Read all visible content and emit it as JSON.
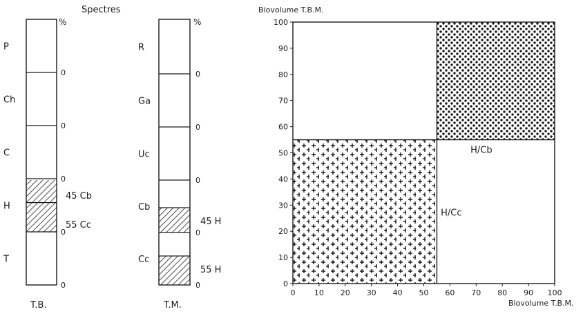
{
  "chart_data": [
    {
      "type": "bar",
      "title": "Spectres",
      "xlabel": "T.B.",
      "unit_label": "%",
      "categories": [
        "P",
        "Ch",
        "C",
        "H",
        "T"
      ],
      "axis_ticks": [
        "0",
        "0",
        "0",
        "0",
        "0"
      ],
      "hatched_range": {
        "from": "H",
        "to": "H"
      },
      "annotations": [
        "45 Cb",
        "55 Cc"
      ],
      "pattern": "diagonal-hatch"
    },
    {
      "type": "bar",
      "xlabel": "T.M.",
      "unit_label": "%",
      "categories": [
        "R",
        "Ga",
        "Uc",
        "Cb",
        "Cc"
      ],
      "axis_ticks": [
        "0",
        "0",
        "0",
        "0",
        "0",
        "0"
      ],
      "annotations": [
        "45 H",
        "55 H"
      ],
      "pattern": "diagonal-hatch"
    },
    {
      "type": "area",
      "xlabel": "Biovolume T.B.M.",
      "ylabel": "Biovolume T.B.M.",
      "xlim": [
        0,
        100
      ],
      "ylim": [
        0,
        100
      ],
      "xticks": [
        0,
        10,
        20,
        30,
        40,
        50,
        60,
        70,
        80,
        90,
        100
      ],
      "yticks": [
        0,
        10,
        20,
        30,
        40,
        50,
        60,
        70,
        80,
        90,
        100
      ],
      "regions": [
        {
          "label": "H/Cc",
          "x": [
            0,
            55
          ],
          "y": [
            0,
            55
          ],
          "pattern": "crosses"
        },
        {
          "label": "H/Cb",
          "x": [
            55,
            100
          ],
          "y": [
            55,
            100
          ],
          "pattern": "dots"
        }
      ]
    }
  ],
  "colors": {
    "ink": "#1a1a1a",
    "paper": "#ffffff"
  }
}
